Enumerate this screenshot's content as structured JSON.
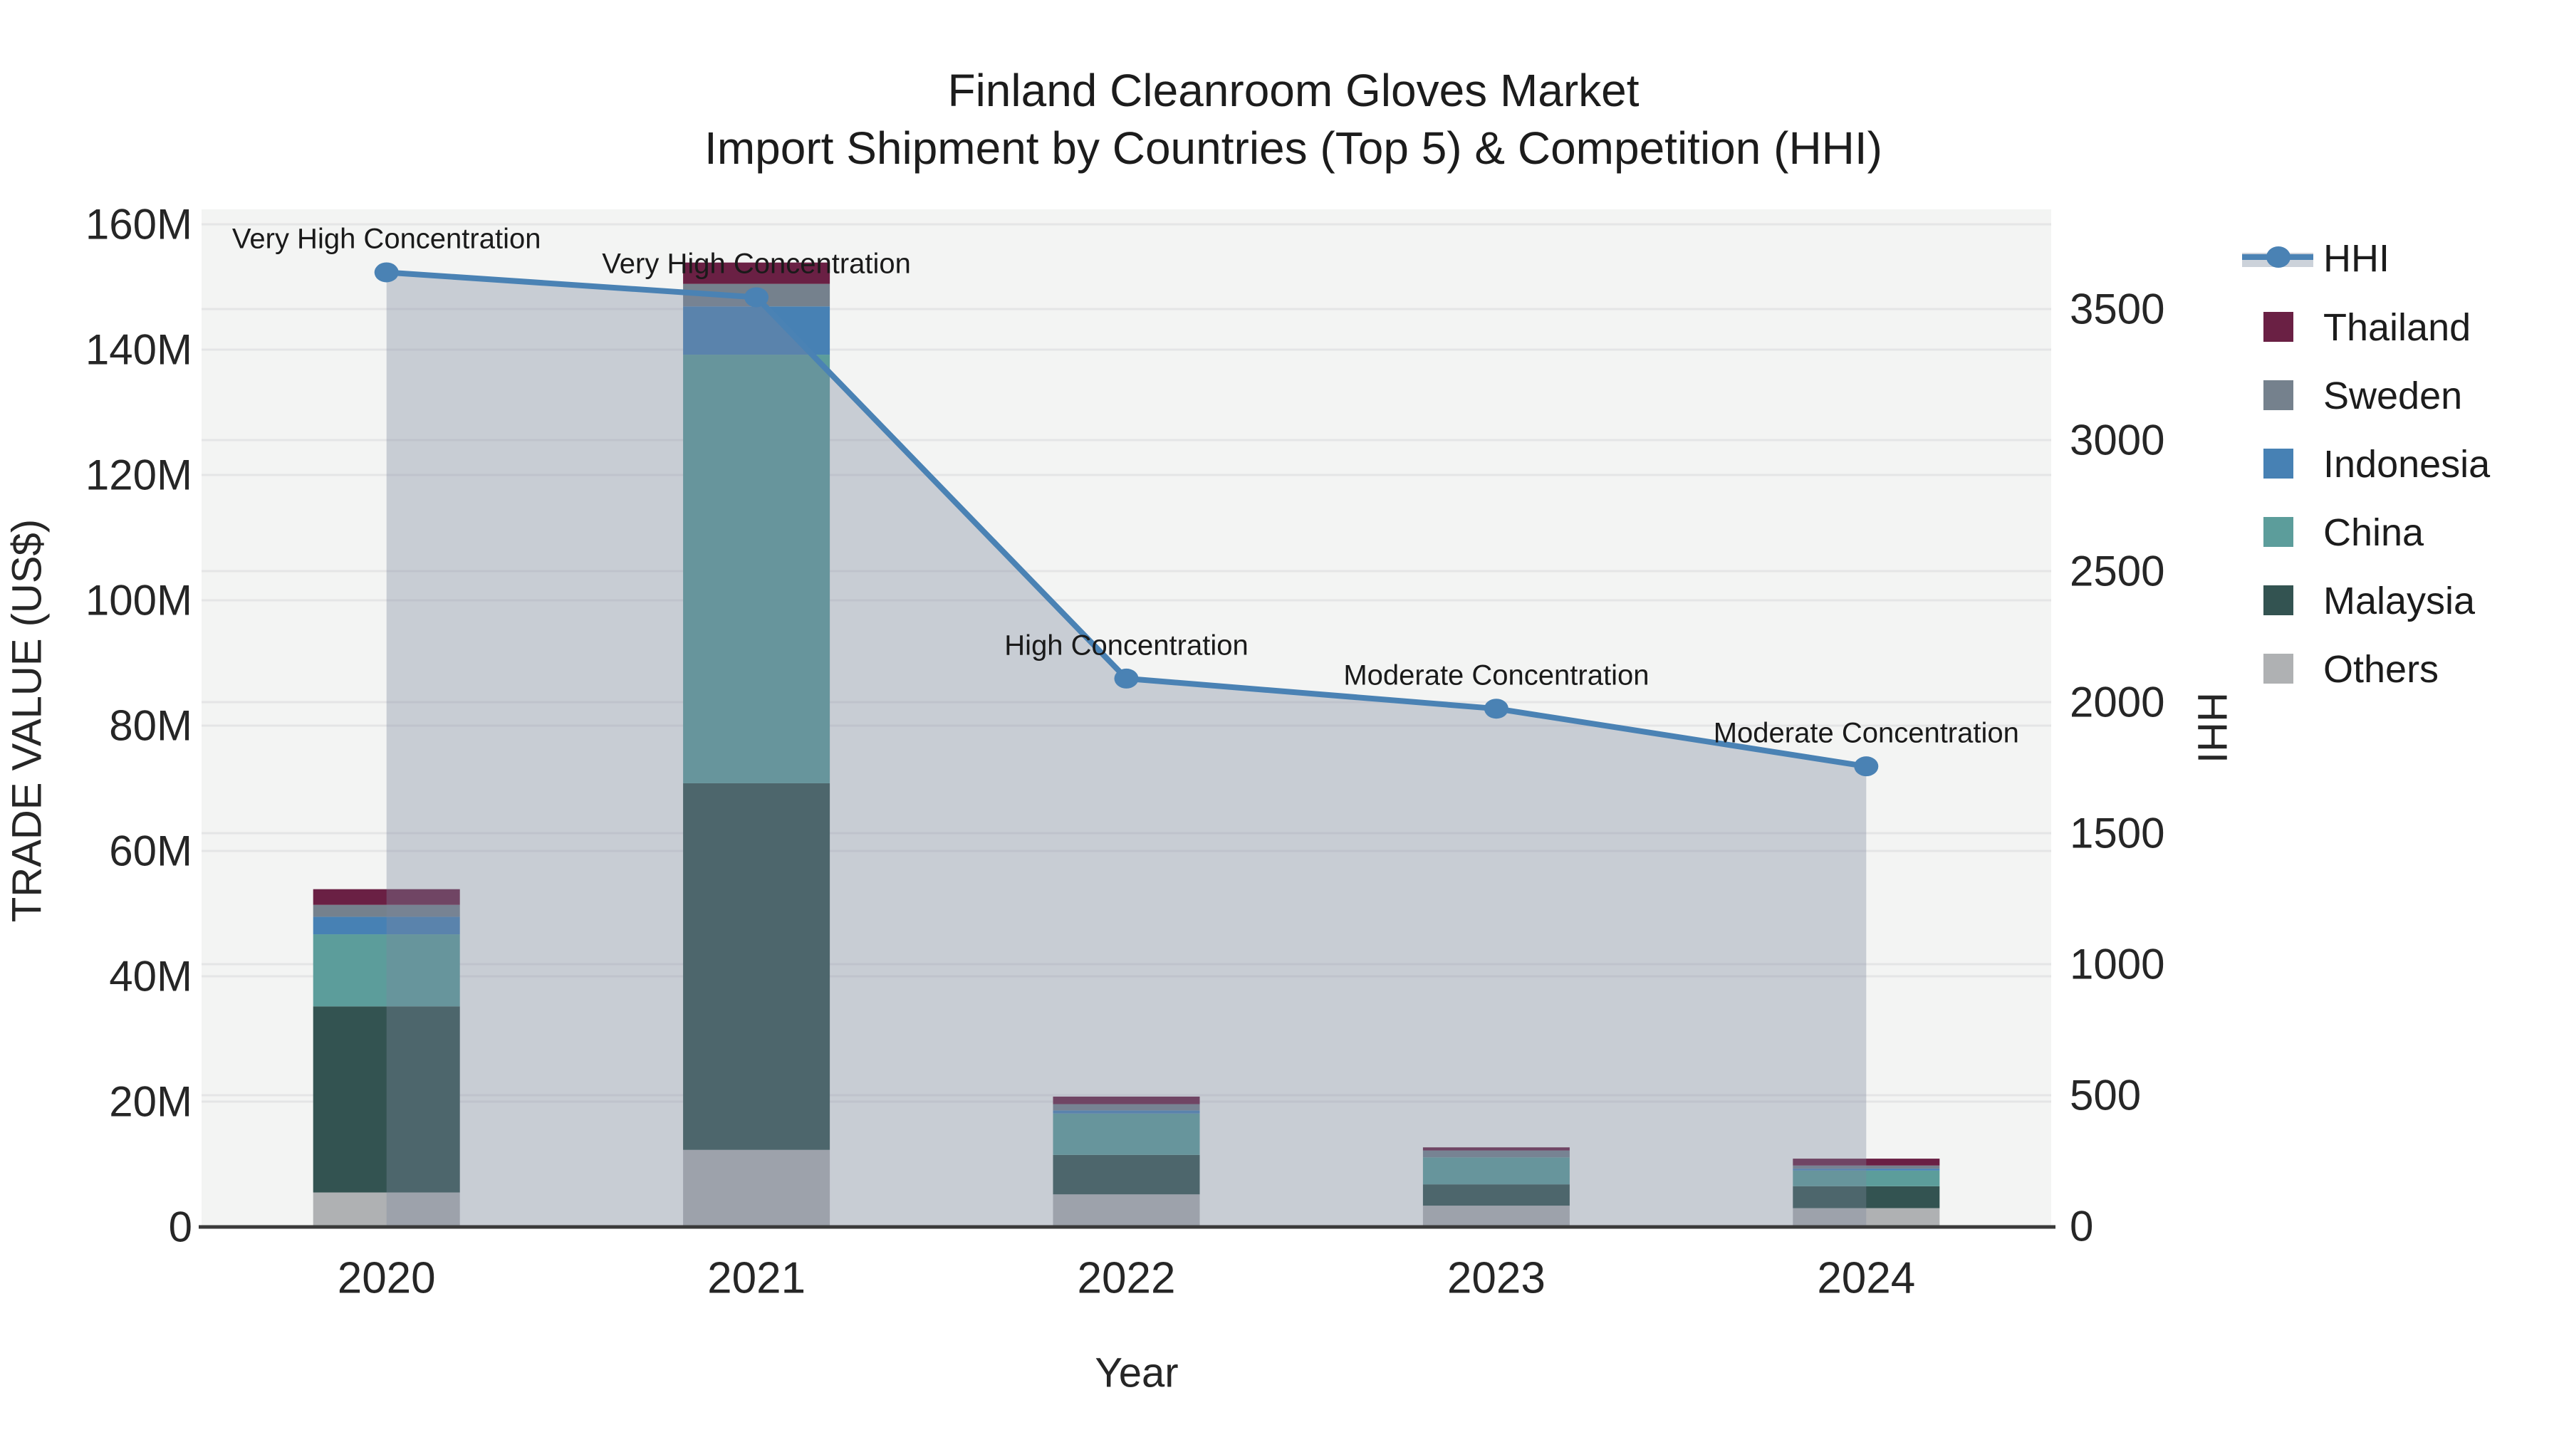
{
  "title": {
    "line1": "Finland Cleanroom Gloves Market",
    "line2": "Import Shipment by Countries (Top 5) & Competition (HHI)"
  },
  "axes": {
    "x_title": "Year",
    "left_title": "TRADE VALUE (US$)",
    "right_title": "HHI",
    "left_ticks": [
      "0",
      "20M",
      "40M",
      "60M",
      "80M",
      "100M",
      "120M",
      "140M",
      "160M"
    ],
    "right_ticks": [
      "0",
      "500",
      "1000",
      "1500",
      "2000",
      "2500",
      "3000",
      "3500"
    ],
    "x_ticks": [
      "2020",
      "2021",
      "2022",
      "2023",
      "2024"
    ]
  },
  "legend": {
    "items": [
      {
        "label": "HHI",
        "type": "line-area",
        "color": "#4a82b4"
      },
      {
        "label": "Thailand",
        "type": "box",
        "color": "#6a2044"
      },
      {
        "label": "Sweden",
        "type": "box",
        "color": "#75818d"
      },
      {
        "label": "Indonesia",
        "type": "box",
        "color": "#4781b4"
      },
      {
        "label": "China",
        "type": "box",
        "color": "#5c9d9b"
      },
      {
        "label": "Malaysia",
        "type": "box",
        "color": "#335351"
      },
      {
        "label": "Others",
        "type": "box",
        "color": "#afb1b3"
      }
    ]
  },
  "chart_data": {
    "type": "combo: stacked bar (left axis) + line with area fill (right axis)",
    "categories": [
      "2020",
      "2021",
      "2022",
      "2023",
      "2024"
    ],
    "bar_unit": "US$ million",
    "stack_order_bottom_to_top": [
      "Others",
      "Malaysia",
      "China",
      "Indonesia",
      "Sweden",
      "Thailand"
    ],
    "series": [
      {
        "name": "Thailand",
        "color": "#6a2044",
        "values": [
          2.5,
          3.4,
          1.2,
          0.5,
          1.1
        ]
      },
      {
        "name": "Sweden",
        "color": "#75818d",
        "values": [
          1.9,
          3.6,
          1.0,
          1.1,
          0.5
        ]
      },
      {
        "name": "Indonesia",
        "color": "#4781b4",
        "values": [
          2.8,
          7.7,
          0.5,
          0,
          0.3
        ]
      },
      {
        "name": "China",
        "color": "#5c9d9b",
        "values": [
          11.5,
          68.4,
          6.6,
          4.3,
          2.5
        ]
      },
      {
        "name": "Malaysia",
        "color": "#335351",
        "values": [
          29.7,
          58.5,
          6.3,
          3.4,
          3.5
        ]
      },
      {
        "name": "Others",
        "color": "#afb1b3",
        "values": [
          5.5,
          12.3,
          5.2,
          3.4,
          3.0
        ]
      }
    ],
    "bar_totals_musd": [
      53.9,
      153.9,
      20.8,
      12.7,
      10.9
    ],
    "line_series": {
      "name": "HHI",
      "axis": "right",
      "color": "#4a82b4",
      "area_fill": "rgba(126,135,159,0.36)",
      "values": [
        3640,
        3545,
        2090,
        1975,
        1755
      ]
    },
    "annotations": [
      {
        "year": "2020",
        "text": "Very High Concentration"
      },
      {
        "year": "2021",
        "text": "Very High Concentration"
      },
      {
        "year": "2022",
        "text": "High Concentration"
      },
      {
        "year": "2023",
        "text": "Moderate Concentration"
      },
      {
        "year": "2024",
        "text": "Moderate Concentration"
      }
    ],
    "xlabel": "Year",
    "ylabel_left": "TRADE VALUE (US$)",
    "ylabel_right": "HHI",
    "ylim_left_musd": [
      0,
      160
    ],
    "ylim_right_hhi": [
      0,
      3880
    ],
    "grid": "horizontal gridlines for both axes",
    "legend_position": "right of plot",
    "plot_bg": "#f3f4f3",
    "grid_color": "#e4e5e6",
    "axis_line_color": "#3a3a3a"
  }
}
